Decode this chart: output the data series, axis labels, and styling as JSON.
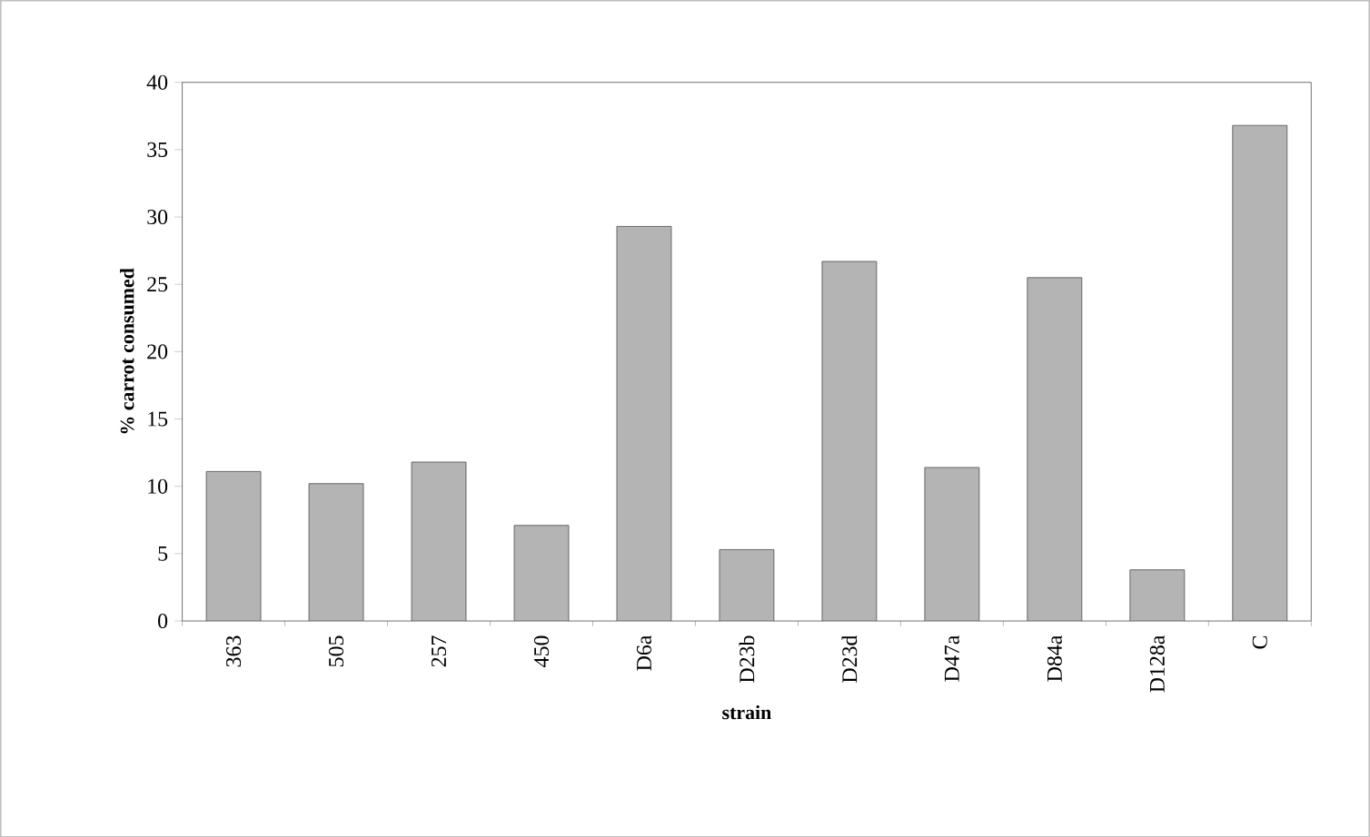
{
  "chart_data": {
    "type": "bar",
    "xlabel": "strain",
    "ylabel": "% carrot consumed",
    "categories": [
      "363",
      "505",
      "257",
      "450",
      "D6a",
      "D23b",
      "D23d",
      "D47a",
      "D84a",
      "D128a",
      "C"
    ],
    "values": [
      11.1,
      10.2,
      11.8,
      7.1,
      29.3,
      5.3,
      26.7,
      11.4,
      25.5,
      3.8,
      36.8
    ],
    "color": "#b4b4b4",
    "ylim": [
      0,
      40
    ],
    "yticks": [
      0,
      5,
      10,
      15,
      20,
      25,
      30,
      35,
      40
    ]
  }
}
